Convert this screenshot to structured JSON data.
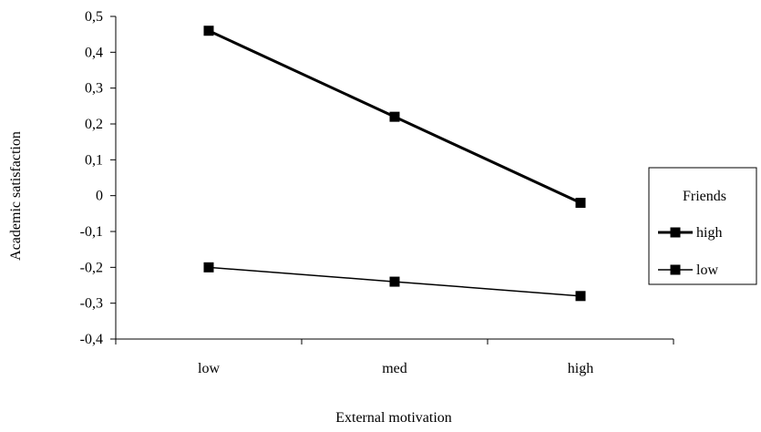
{
  "chart_data": {
    "type": "line",
    "title": "",
    "xlabel": "External motivation",
    "ylabel": "Academic satisfaction",
    "categories": [
      "low",
      "med",
      "high"
    ],
    "ylim": [
      -0.4,
      0.5
    ],
    "yticks": [
      0.5,
      0.4,
      0.3,
      0.2,
      0.1,
      0,
      -0.1,
      -0.2,
      -0.3,
      -0.4
    ],
    "ytick_labels": [
      "0,5",
      "0,4",
      "0,3",
      "0,2",
      "0,1",
      "0",
      "-0,1",
      "-0,2",
      "-0,3",
      "-0,4"
    ],
    "grid": false,
    "legend": {
      "title": "Friends",
      "position": "right"
    },
    "series": [
      {
        "name": "high",
        "values": [
          0.46,
          0.22,
          -0.02
        ],
        "line_weight": "thick",
        "marker": "square",
        "color": "#000000"
      },
      {
        "name": "low",
        "values": [
          -0.2,
          -0.24,
          -0.28
        ],
        "line_weight": "thin",
        "marker": "square",
        "color": "#000000"
      }
    ]
  }
}
